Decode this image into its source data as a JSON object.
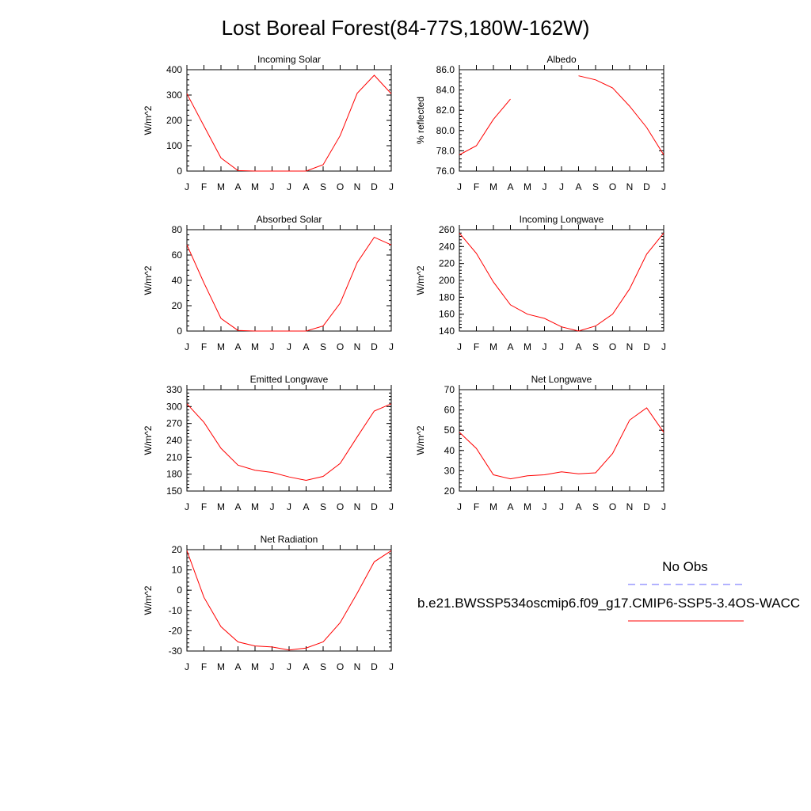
{
  "title": "Lost Boreal Forest(84-77S,180W-162W)",
  "months": [
    "J",
    "F",
    "M",
    "A",
    "M",
    "J",
    "J",
    "A",
    "S",
    "O",
    "N",
    "D",
    "J"
  ],
  "colors": {
    "model": "#ff0000",
    "obs": "#6666ff"
  },
  "legend": {
    "obs_label": "No Obs",
    "model_label": "b.e21.BWSSP534oscmip6.f09_g17.CMIP6-SSP5-3.4OS-WACC"
  },
  "chart_data": [
    {
      "type": "line",
      "title": "Incoming Solar",
      "ylabel": "W/m^2",
      "ylim": [
        0,
        400
      ],
      "yticks": [
        "0",
        "100",
        "200",
        "300",
        "400"
      ],
      "tick_values": [
        0,
        100,
        200,
        300,
        400
      ],
      "series": [
        {
          "values": [
            305,
            178,
            52,
            2,
            0,
            0,
            0,
            0,
            25,
            140,
            307,
            378,
            305
          ]
        }
      ]
    },
    {
      "type": "line",
      "title": "Albedo",
      "ylabel": "% reflected",
      "ylim": [
        76,
        86
      ],
      "yticks": [
        "76.0",
        "78.0",
        "80.0",
        "82.0",
        "84.0",
        "86.0"
      ],
      "tick_values": [
        76,
        78,
        80,
        82,
        84,
        86
      ],
      "series": [
        {
          "values": [
            77.6,
            78.5,
            81.1,
            83.1,
            null,
            null,
            null,
            85.4,
            85.0,
            84.2,
            82.4,
            80.3,
            77.6
          ]
        }
      ]
    },
    {
      "type": "line",
      "title": "Absorbed Solar",
      "ylabel": "W/m^2",
      "ylim": [
        0,
        80
      ],
      "yticks": [
        "0",
        "20",
        "40",
        "60",
        "80"
      ],
      "tick_values": [
        0,
        20,
        40,
        60,
        80
      ],
      "series": [
        {
          "values": [
            68,
            38,
            10,
            0.5,
            0,
            0,
            0,
            0,
            4,
            22,
            54,
            74,
            68
          ]
        }
      ]
    },
    {
      "type": "line",
      "title": "Incoming Longwave",
      "ylabel": "W/m^2",
      "ylim": [
        140,
        260
      ],
      "yticks": [
        "140",
        "160",
        "180",
        "200",
        "220",
        "240",
        "260"
      ],
      "tick_values": [
        140,
        160,
        180,
        200,
        220,
        240,
        260
      ],
      "series": [
        {
          "values": [
            256,
            232,
            198,
            171,
            160,
            155,
            145,
            140,
            146,
            160,
            190,
            231,
            256
          ]
        }
      ]
    },
    {
      "type": "line",
      "title": "Emitted Longwave",
      "ylabel": "W/m^2",
      "ylim": [
        150,
        330
      ],
      "yticks": [
        "150",
        "180",
        "210",
        "240",
        "270",
        "300",
        "330"
      ],
      "tick_values": [
        150,
        180,
        210,
        240,
        270,
        300,
        330
      ],
      "series": [
        {
          "values": [
            305,
            272,
            226,
            196,
            187,
            183,
            175,
            169,
            176,
            199,
            246,
            292,
            305
          ]
        }
      ]
    },
    {
      "type": "line",
      "title": "Net Longwave",
      "ylabel": "W/m^2",
      "ylim": [
        20,
        70
      ],
      "yticks": [
        "20",
        "30",
        "40",
        "50",
        "60",
        "70"
      ],
      "tick_values": [
        20,
        30,
        40,
        50,
        60,
        70
      ],
      "series": [
        {
          "values": [
            49,
            41,
            28,
            26,
            27.5,
            28,
            29.5,
            28.5,
            29,
            38.5,
            55,
            61,
            49
          ]
        }
      ]
    },
    {
      "type": "line",
      "title": "Net Radiation",
      "ylabel": "W/m^2",
      "ylim": [
        -30,
        20
      ],
      "yticks": [
        "-30",
        "-20",
        "-10",
        "0",
        "10",
        "20"
      ],
      "tick_values": [
        -30,
        -20,
        -10,
        0,
        10,
        20
      ],
      "series": [
        {
          "values": [
            19.5,
            -3.5,
            -18,
            -25.5,
            -27.5,
            -28,
            -29.5,
            -28.5,
            -25.5,
            -16,
            -1.5,
            14,
            19.5
          ]
        }
      ]
    }
  ]
}
